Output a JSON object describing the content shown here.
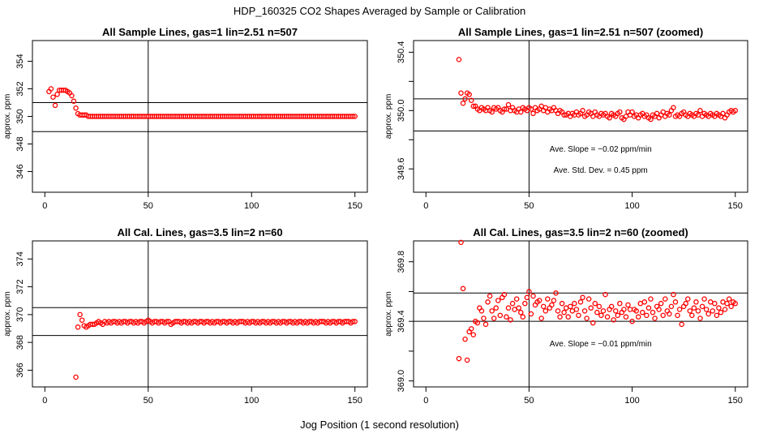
{
  "figure": {
    "title": "HDP_160325  CO2 Shapes Averaged by Sample or Calibration",
    "xlabel": "Jog Position (1 second resolution)"
  },
  "chart_data": [
    {
      "type": "scatter",
      "title": "All Sample Lines, gas=1 lin=2.51 n=507",
      "ylabel": "approx. ppm",
      "xlim": [
        0,
        150
      ],
      "ylim": [
        344.5,
        355.5
      ],
      "xticks": [
        0,
        50,
        100,
        150
      ],
      "yticks": [
        346,
        348,
        350,
        352,
        354
      ],
      "ytick_labels": [
        "346",
        "348",
        "350",
        "352",
        "354"
      ],
      "hlines": [
        348.9,
        351.0
      ],
      "vline": 50,
      "marker_color": "#ff0000",
      "annotations": [],
      "x": [
        2,
        3,
        4,
        5,
        6,
        7,
        8,
        9,
        10,
        11,
        12,
        13,
        14,
        15,
        16,
        17,
        18,
        19,
        20,
        21,
        22,
        23,
        24,
        25,
        26,
        27,
        28,
        29,
        30,
        31,
        32,
        33,
        34,
        35,
        36,
        37,
        38,
        39,
        40,
        41,
        42,
        43,
        44,
        45,
        46,
        47,
        48,
        49,
        50,
        51,
        52,
        53,
        54,
        55,
        56,
        57,
        58,
        59,
        60,
        61,
        62,
        63,
        64,
        65,
        66,
        67,
        68,
        69,
        70,
        71,
        72,
        73,
        74,
        75,
        76,
        77,
        78,
        79,
        80,
        81,
        82,
        83,
        84,
        85,
        86,
        87,
        88,
        89,
        90,
        91,
        92,
        93,
        94,
        95,
        96,
        97,
        98,
        99,
        100,
        101,
        102,
        103,
        104,
        105,
        106,
        107,
        108,
        109,
        110,
        111,
        112,
        113,
        114,
        115,
        116,
        117,
        118,
        119,
        120,
        121,
        122,
        123,
        124,
        125,
        126,
        127,
        128,
        129,
        130,
        131,
        132,
        133,
        134,
        135,
        136,
        137,
        138,
        139,
        140,
        141,
        142,
        143,
        144,
        145,
        146,
        147,
        148,
        149,
        150
      ],
      "y": [
        351.8,
        352.0,
        351.4,
        350.8,
        351.6,
        351.9,
        351.9,
        351.9,
        351.9,
        351.8,
        351.7,
        351.5,
        351.1,
        350.6,
        350.2,
        350.1,
        350.1,
        350.1,
        350.1,
        350.0,
        350.0,
        350.0,
        350.0,
        350.0,
        350.0,
        350.0,
        350.0,
        350.0,
        350.0,
        350.0,
        350.0,
        350.0,
        350.0,
        350.0,
        350.0,
        350.0,
        350.0,
        350.0,
        350.0,
        350.0,
        350.0,
        350.0,
        350.0,
        350.0,
        350.0,
        350.0,
        350.0,
        350.0,
        350.0,
        350.0,
        350.0,
        350.0,
        350.0,
        350.0,
        350.0,
        350.0,
        350.0,
        350.0,
        350.0,
        350.0,
        350.0,
        350.0,
        350.0,
        350.0,
        350.0,
        350.0,
        350.0,
        350.0,
        350.0,
        350.0,
        350.0,
        350.0,
        350.0,
        350.0,
        350.0,
        350.0,
        350.0,
        350.0,
        350.0,
        350.0,
        350.0,
        350.0,
        350.0,
        350.0,
        350.0,
        350.0,
        350.0,
        350.0,
        350.0,
        350.0,
        350.0,
        350.0,
        350.0,
        350.0,
        350.0,
        350.0,
        350.0,
        350.0,
        350.0,
        350.0,
        350.0,
        350.0,
        350.0,
        350.0,
        350.0,
        350.0,
        350.0,
        350.0,
        350.0,
        350.0,
        350.0,
        350.0,
        350.0,
        350.0,
        350.0,
        350.0,
        350.0,
        350.0,
        350.0,
        350.0,
        350.0,
        350.0,
        350.0,
        350.0,
        350.0,
        350.0,
        350.0,
        350.0,
        350.0,
        350.0,
        350.0,
        350.0,
        350.0,
        350.0,
        350.0,
        350.0,
        350.0,
        350.0,
        350.0,
        350.0,
        350.0,
        350.0,
        350.0,
        350.0,
        350.0,
        350.0,
        350.0,
        350.0,
        350.0
      ]
    },
    {
      "type": "scatter",
      "title": "All Sample Lines, gas=1 lin=2.51 n=507 (zoomed)",
      "ylabel": "approx. ppm",
      "xlim": [
        0,
        150
      ],
      "ylim": [
        349.44,
        350.48
      ],
      "xticks": [
        0,
        50,
        100,
        150
      ],
      "yticks": [
        349.6,
        349.8,
        350.0,
        350.2,
        350.4
      ],
      "ytick_labels": [
        "349.6",
        "",
        "350.0",
        "",
        "350.4"
      ],
      "hlines": [
        349.86,
        350.08
      ],
      "vline": 50,
      "marker_color": "#ff0000",
      "annotations": [
        "Ave. Slope =  −0.02  ppm/min",
        "Ave. Std. Dev. =  0.45  ppm"
      ],
      "x": [
        16,
        17,
        18,
        19,
        20,
        21,
        22,
        23,
        24,
        25,
        26,
        27,
        28,
        29,
        30,
        31,
        32,
        33,
        34,
        35,
        36,
        37,
        38,
        39,
        40,
        41,
        42,
        43,
        44,
        45,
        46,
        47,
        48,
        49,
        50,
        51,
        52,
        53,
        54,
        55,
        56,
        57,
        58,
        59,
        60,
        61,
        62,
        63,
        64,
        65,
        66,
        67,
        68,
        69,
        70,
        71,
        72,
        73,
        74,
        75,
        76,
        77,
        78,
        79,
        80,
        81,
        82,
        83,
        84,
        85,
        86,
        87,
        88,
        89,
        90,
        91,
        92,
        93,
        94,
        95,
        96,
        97,
        98,
        99,
        100,
        101,
        102,
        103,
        104,
        105,
        106,
        107,
        108,
        109,
        110,
        111,
        112,
        113,
        114,
        115,
        116,
        117,
        118,
        119,
        120,
        121,
        122,
        123,
        124,
        125,
        126,
        127,
        128,
        129,
        130,
        131,
        132,
        133,
        134,
        135,
        136,
        137,
        138,
        139,
        140,
        141,
        142,
        143,
        144,
        145,
        146,
        147,
        148,
        149,
        150
      ],
      "y": [
        350.35,
        350.12,
        350.05,
        350.08,
        350.12,
        350.11,
        350.07,
        350.03,
        350.03,
        350.01,
        350.0,
        350.02,
        350.01,
        350.0,
        350.02,
        350.0,
        349.99,
        350.02,
        350.01,
        350.02,
        350.0,
        349.99,
        350.01,
        350.01,
        350.04,
        350.0,
        350.02,
        350.0,
        349.99,
        350.01,
        349.99,
        350.02,
        350.01,
        350.0,
        350.02,
        350.01,
        349.98,
        350.02,
        350.0,
        350.01,
        350.03,
        350.0,
        350.02,
        349.99,
        350.01,
        350.0,
        350.02,
        350.0,
        349.98,
        350.0,
        349.99,
        349.97,
        349.97,
        349.98,
        349.96,
        349.98,
        349.97,
        349.99,
        349.97,
        349.98,
        350.0,
        349.96,
        349.97,
        349.99,
        349.98,
        349.96,
        349.99,
        349.97,
        349.96,
        349.98,
        349.97,
        349.98,
        349.96,
        349.95,
        349.98,
        349.97,
        349.96,
        349.98,
        349.99,
        349.95,
        349.94,
        349.96,
        349.99,
        349.97,
        349.99,
        349.96,
        349.97,
        349.95,
        349.97,
        349.98,
        349.96,
        349.97,
        349.95,
        349.94,
        349.97,
        349.96,
        349.98,
        349.95,
        349.97,
        349.99,
        349.96,
        349.98,
        349.97,
        350.0,
        350.02,
        349.96,
        349.97,
        349.96,
        349.98,
        349.99,
        349.97,
        349.96,
        349.98,
        349.97,
        349.96,
        349.98,
        349.97,
        350.0,
        349.96,
        349.98,
        349.97,
        349.96,
        349.98,
        349.97,
        349.96,
        349.98,
        349.97,
        349.96,
        349.98,
        349.95,
        349.97,
        349.99,
        350.0,
        349.99,
        350.0
      ]
    },
    {
      "type": "scatter",
      "title": "All Cal. Lines, gas=3.5 lin=2 n=60",
      "ylabel": "approx. ppm",
      "xlim": [
        0,
        150
      ],
      "ylim": [
        364.8,
        375.3
      ],
      "xticks": [
        0,
        50,
        100,
        150
      ],
      "yticks": [
        366,
        368,
        370,
        372,
        374
      ],
      "ytick_labels": [
        "366",
        "368",
        "370",
        "372",
        "374"
      ],
      "hlines": [
        368.5,
        370.5
      ],
      "vline": 50,
      "marker_color": "#ff0000",
      "annotations": [],
      "x": [
        15,
        16,
        17,
        18,
        19,
        20,
        21,
        22,
        23,
        24,
        25,
        26,
        27,
        28,
        29,
        30,
        31,
        32,
        33,
        34,
        35,
        36,
        37,
        38,
        39,
        40,
        41,
        42,
        43,
        44,
        45,
        46,
        47,
        48,
        49,
        50,
        51,
        52,
        53,
        54,
        55,
        56,
        57,
        58,
        59,
        60,
        61,
        62,
        63,
        64,
        65,
        66,
        67,
        68,
        69,
        70,
        71,
        72,
        73,
        74,
        75,
        76,
        77,
        78,
        79,
        80,
        81,
        82,
        83,
        84,
        85,
        86,
        87,
        88,
        89,
        90,
        91,
        92,
        93,
        94,
        95,
        96,
        97,
        98,
        99,
        100,
        101,
        102,
        103,
        104,
        105,
        106,
        107,
        108,
        109,
        110,
        111,
        112,
        113,
        114,
        115,
        116,
        117,
        118,
        119,
        120,
        121,
        122,
        123,
        124,
        125,
        126,
        127,
        128,
        129,
        130,
        131,
        132,
        133,
        134,
        135,
        136,
        137,
        138,
        139,
        140,
        141,
        142,
        143,
        144,
        145,
        146,
        147,
        148,
        149,
        150
      ],
      "y": [
        365.5,
        369.1,
        370.0,
        369.6,
        369.2,
        369.1,
        369.2,
        369.3,
        369.3,
        369.3,
        369.4,
        369.5,
        369.4,
        369.3,
        369.5,
        369.4,
        369.5,
        369.4,
        369.5,
        369.5,
        369.4,
        369.5,
        369.4,
        369.5,
        369.5,
        369.4,
        369.5,
        369.5,
        369.4,
        369.5,
        369.4,
        369.5,
        369.5,
        369.4,
        369.5,
        369.6,
        369.5,
        369.4,
        369.5,
        369.5,
        369.4,
        369.5,
        369.5,
        369.4,
        369.5,
        369.5,
        369.3,
        369.4,
        369.5,
        369.5,
        369.5,
        369.4,
        369.5,
        369.5,
        369.4,
        369.5,
        369.4,
        369.5,
        369.5,
        369.4,
        369.5,
        369.5,
        369.4,
        369.5,
        369.5,
        369.4,
        369.5,
        369.4,
        369.5,
        369.5,
        369.4,
        369.5,
        369.5,
        369.4,
        369.5,
        369.5,
        369.4,
        369.5,
        369.4,
        369.5,
        369.5,
        369.5,
        369.4,
        369.5,
        369.4,
        369.5,
        369.5,
        369.4,
        369.5,
        369.4,
        369.5,
        369.5,
        369.4,
        369.5,
        369.4,
        369.5,
        369.5,
        369.4,
        369.5,
        369.4,
        369.5,
        369.5,
        369.4,
        369.5,
        369.5,
        369.4,
        369.5,
        369.4,
        369.5,
        369.5,
        369.4,
        369.5,
        369.4,
        369.5,
        369.5,
        369.4,
        369.5,
        369.4,
        369.5,
        369.5,
        369.5,
        369.4,
        369.5,
        369.4,
        369.5,
        369.5,
        369.4,
        369.5,
        369.5,
        369.4,
        369.5,
        369.5,
        369.5,
        369.4,
        369.5,
        369.5
      ]
    },
    {
      "type": "scatter",
      "title": "All Cal. Lines, gas=3.5 lin=2 n=60 (zoomed)",
      "ylabel": "approx. ppm",
      "xlim": [
        0,
        150
      ],
      "ylim": [
        368.96,
        369.94
      ],
      "xticks": [
        0,
        50,
        100,
        150
      ],
      "yticks": [
        369.0,
        369.2,
        369.4,
        369.6,
        369.8
      ],
      "ytick_labels": [
        "369.0",
        "",
        "369.4",
        "",
        "369.8"
      ],
      "hlines": [
        369.4,
        369.59
      ],
      "vline": 50,
      "marker_color": "#ff0000",
      "annotations": [
        "Ave. Slope =  −0.01  ppm/min"
      ],
      "x": [
        16,
        17,
        18,
        19,
        20,
        21,
        22,
        23,
        24,
        25,
        26,
        27,
        28,
        29,
        30,
        31,
        32,
        33,
        34,
        35,
        36,
        37,
        38,
        39,
        40,
        41,
        42,
        43,
        44,
        45,
        46,
        47,
        48,
        49,
        50,
        51,
        52,
        53,
        54,
        55,
        56,
        57,
        58,
        59,
        60,
        61,
        62,
        63,
        64,
        65,
        66,
        67,
        68,
        69,
        70,
        71,
        72,
        73,
        74,
        75,
        76,
        77,
        78,
        79,
        80,
        81,
        82,
        83,
        84,
        85,
        86,
        87,
        88,
        89,
        90,
        91,
        92,
        93,
        94,
        95,
        96,
        97,
        98,
        99,
        100,
        101,
        102,
        103,
        104,
        105,
        106,
        107,
        108,
        109,
        110,
        111,
        112,
        113,
        114,
        115,
        116,
        117,
        118,
        119,
        120,
        121,
        122,
        123,
        124,
        125,
        126,
        127,
        128,
        129,
        130,
        131,
        132,
        133,
        134,
        135,
        136,
        137,
        138,
        139,
        140,
        141,
        142,
        143,
        144,
        145,
        146,
        147,
        148,
        149,
        150
      ],
      "y": [
        369.15,
        369.93,
        369.62,
        369.28,
        369.14,
        369.33,
        369.35,
        369.31,
        369.4,
        369.39,
        369.49,
        369.47,
        369.42,
        369.38,
        369.53,
        369.57,
        369.47,
        369.42,
        369.49,
        369.54,
        369.44,
        369.56,
        369.58,
        369.43,
        369.49,
        369.41,
        369.52,
        369.48,
        369.55,
        369.49,
        369.46,
        369.43,
        369.52,
        369.56,
        369.6,
        369.45,
        369.57,
        369.51,
        369.53,
        369.54,
        369.42,
        369.5,
        369.47,
        369.55,
        369.49,
        369.51,
        369.54,
        369.59,
        369.47,
        369.43,
        369.52,
        369.46,
        369.49,
        369.43,
        369.5,
        369.47,
        369.52,
        369.48,
        369.44,
        369.53,
        369.56,
        369.47,
        369.42,
        369.55,
        369.49,
        369.39,
        369.52,
        369.46,
        369.5,
        369.44,
        369.47,
        369.58,
        369.43,
        369.48,
        369.5,
        369.41,
        369.47,
        369.44,
        369.52,
        369.46,
        369.48,
        369.43,
        369.51,
        369.48,
        369.4,
        369.48,
        369.47,
        369.43,
        369.52,
        369.46,
        369.53,
        369.44,
        369.49,
        369.55,
        369.46,
        369.42,
        369.5,
        369.48,
        369.52,
        369.44,
        369.55,
        369.47,
        369.45,
        369.5,
        369.58,
        369.53,
        369.44,
        369.48,
        369.38,
        369.5,
        369.52,
        369.55,
        369.47,
        369.44,
        369.49,
        369.53,
        369.47,
        369.42,
        369.5,
        369.55,
        369.48,
        369.45,
        369.53,
        369.47,
        369.52,
        369.44,
        369.49,
        369.46,
        369.53,
        369.48,
        369.52,
        369.55,
        369.5,
        369.53,
        369.52
      ]
    }
  ]
}
